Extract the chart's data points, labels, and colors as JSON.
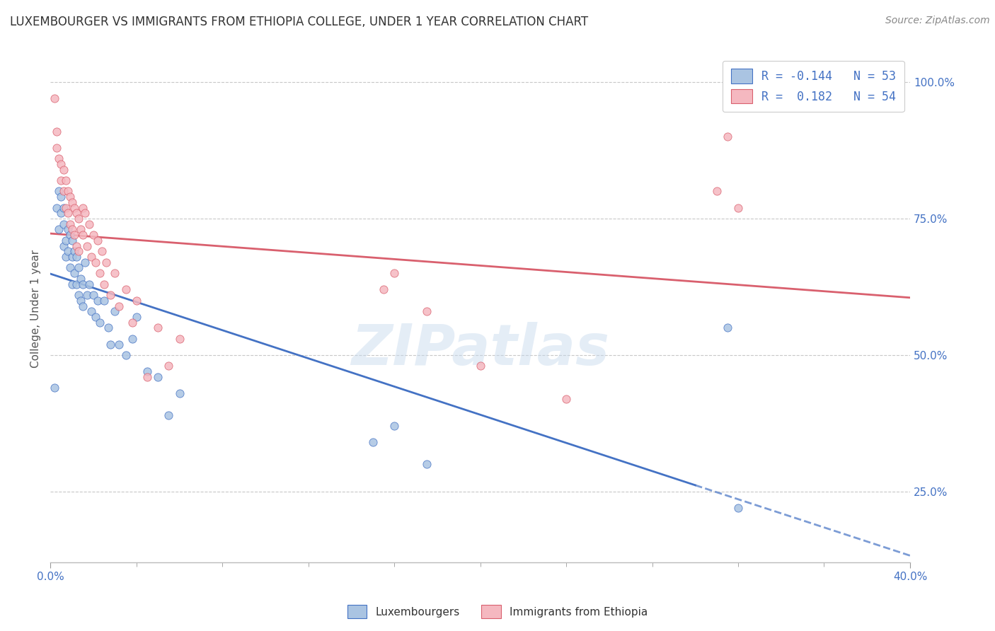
{
  "title": "LUXEMBOURGER VS IMMIGRANTS FROM ETHIOPIA COLLEGE, UNDER 1 YEAR CORRELATION CHART",
  "source_text": "Source: ZipAtlas.com",
  "ylabel": "College, Under 1 year",
  "xlim": [
    0.0,
    0.4
  ],
  "ylim": [
    0.12,
    1.05
  ],
  "xticks": [
    0.0,
    0.4
  ],
  "yticks": [
    0.25,
    0.5,
    0.75,
    1.0
  ],
  "ytick_labels": [
    "25.0%",
    "50.0%",
    "75.0%",
    "100.0%"
  ],
  "xtick_labels": [
    "0.0%",
    "40.0%"
  ],
  "legend_lux_r": "-0.144",
  "legend_lux_n": "53",
  "legend_eth_r": "0.182",
  "legend_eth_n": "54",
  "legend_labels": [
    "Luxembourgers",
    "Immigrants from Ethiopia"
  ],
  "blue_color": "#aac4e2",
  "pink_color": "#f5b8c0",
  "blue_line_color": "#4472c4",
  "pink_line_color": "#d9606e",
  "watermark": "ZIPatlas",
  "lux_x": [
    0.002,
    0.003,
    0.004,
    0.004,
    0.005,
    0.005,
    0.006,
    0.006,
    0.006,
    0.007,
    0.007,
    0.008,
    0.008,
    0.009,
    0.009,
    0.01,
    0.01,
    0.01,
    0.011,
    0.011,
    0.012,
    0.012,
    0.013,
    0.013,
    0.014,
    0.014,
    0.015,
    0.015,
    0.016,
    0.017,
    0.018,
    0.019,
    0.02,
    0.021,
    0.022,
    0.023,
    0.025,
    0.027,
    0.028,
    0.03,
    0.032,
    0.035,
    0.038,
    0.04,
    0.045,
    0.05,
    0.055,
    0.06,
    0.15,
    0.16,
    0.175,
    0.315,
    0.32
  ],
  "lux_y": [
    0.44,
    0.77,
    0.73,
    0.8,
    0.79,
    0.76,
    0.77,
    0.74,
    0.7,
    0.71,
    0.68,
    0.73,
    0.69,
    0.72,
    0.66,
    0.71,
    0.68,
    0.63,
    0.69,
    0.65,
    0.68,
    0.63,
    0.66,
    0.61,
    0.64,
    0.6,
    0.63,
    0.59,
    0.67,
    0.61,
    0.63,
    0.58,
    0.61,
    0.57,
    0.6,
    0.56,
    0.6,
    0.55,
    0.52,
    0.58,
    0.52,
    0.5,
    0.53,
    0.57,
    0.47,
    0.46,
    0.39,
    0.43,
    0.34,
    0.37,
    0.3,
    0.55,
    0.22
  ],
  "eth_x": [
    0.002,
    0.003,
    0.003,
    0.004,
    0.005,
    0.005,
    0.006,
    0.006,
    0.007,
    0.007,
    0.008,
    0.008,
    0.009,
    0.009,
    0.01,
    0.01,
    0.011,
    0.011,
    0.012,
    0.012,
    0.013,
    0.013,
    0.014,
    0.015,
    0.015,
    0.016,
    0.017,
    0.018,
    0.019,
    0.02,
    0.021,
    0.022,
    0.023,
    0.024,
    0.025,
    0.026,
    0.028,
    0.03,
    0.032,
    0.035,
    0.038,
    0.04,
    0.045,
    0.05,
    0.055,
    0.06,
    0.155,
    0.16,
    0.175,
    0.2,
    0.24,
    0.31,
    0.315,
    0.32
  ],
  "eth_y": [
    0.97,
    0.91,
    0.88,
    0.86,
    0.85,
    0.82,
    0.84,
    0.8,
    0.82,
    0.77,
    0.8,
    0.76,
    0.79,
    0.74,
    0.78,
    0.73,
    0.77,
    0.72,
    0.76,
    0.7,
    0.75,
    0.69,
    0.73,
    0.77,
    0.72,
    0.76,
    0.7,
    0.74,
    0.68,
    0.72,
    0.67,
    0.71,
    0.65,
    0.69,
    0.63,
    0.67,
    0.61,
    0.65,
    0.59,
    0.62,
    0.56,
    0.6,
    0.46,
    0.55,
    0.48,
    0.53,
    0.62,
    0.65,
    0.58,
    0.48,
    0.42,
    0.8,
    0.9,
    0.77
  ],
  "background_color": "#ffffff",
  "grid_color": "#c8c8c8",
  "title_fontsize": 12,
  "axis_label_fontsize": 11,
  "tick_fontsize": 11,
  "source_fontsize": 10
}
